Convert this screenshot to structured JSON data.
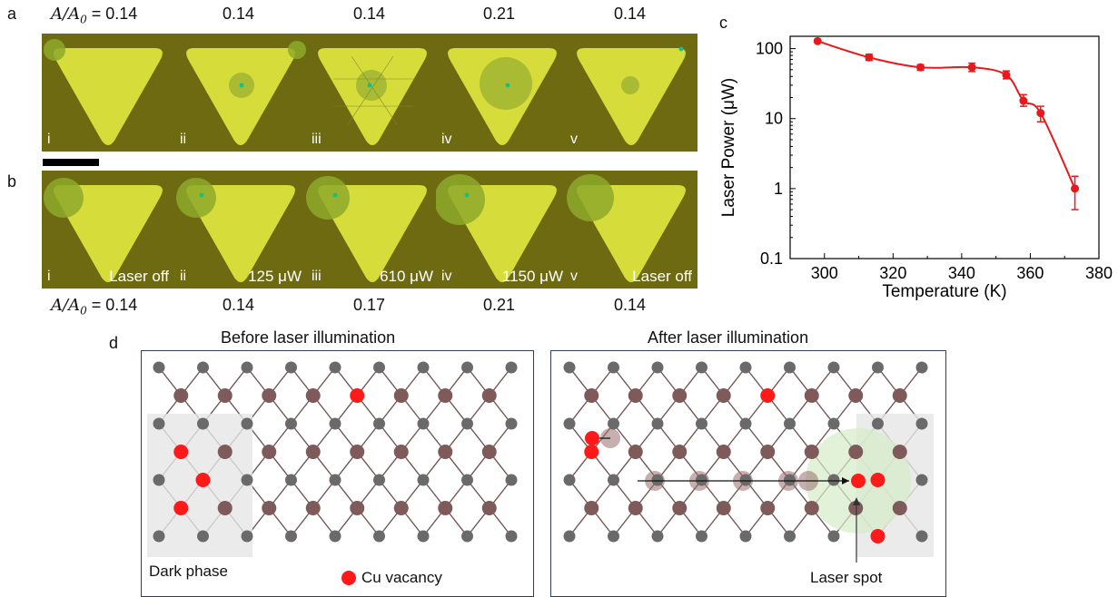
{
  "panel_labels": {
    "a": "a",
    "b": "b",
    "c": "c",
    "d": "d"
  },
  "row_a": {
    "ratios": [
      "0.14",
      "0.14",
      "0.14",
      "0.21",
      "0.14"
    ],
    "ratio_prefix": "A/A",
    "ratio_sub": "0",
    "tiles": [
      "i",
      "ii",
      "iii",
      "iv",
      "v"
    ]
  },
  "row_b": {
    "ratios": [
      "0.14",
      "0.14",
      "0.17",
      "0.21",
      "0.14"
    ],
    "tiles": [
      {
        "num": "i",
        "cond": "Laser off"
      },
      {
        "num": "ii",
        "cond": "125 μW"
      },
      {
        "num": "iii",
        "cond": "610 μW"
      },
      {
        "num": "iv",
        "cond": "1150 μW"
      },
      {
        "num": "v",
        "cond": "Laser off"
      }
    ]
  },
  "chart_data": {
    "type": "scatter",
    "xlabel": "Temperature (K)",
    "ylabel": "Laser Power (μW)",
    "xlim": [
      290,
      380
    ],
    "ylim": [
      0.1,
      150
    ],
    "yscale": "log",
    "xticks": [
      "300",
      "320",
      "340",
      "360",
      "380"
    ],
    "yticks": [
      "0.1",
      "1",
      "10",
      "100"
    ],
    "points": [
      {
        "x": 298,
        "y": 128,
        "err": [
          128,
          128
        ]
      },
      {
        "x": 313,
        "y": 75,
        "err": [
          68,
          83
        ]
      },
      {
        "x": 328,
        "y": 54,
        "err": [
          49,
          59
        ]
      },
      {
        "x": 343,
        "y": 54,
        "err": [
          47,
          62
        ]
      },
      {
        "x": 353,
        "y": 42,
        "err": [
          37,
          48
        ]
      },
      {
        "x": 358,
        "y": 18,
        "err": [
          15,
          22
        ]
      },
      {
        "x": 363,
        "y": 12,
        "err": [
          9,
          15
        ]
      },
      {
        "x": 373,
        "y": 1,
        "err": [
          0.5,
          1.5
        ]
      }
    ],
    "color": "#e8191c"
  },
  "panel_d": {
    "left_title": "Before laser illumination",
    "right_title": "After laser illumination",
    "dark_phase": "Dark phase",
    "cu_vacancy": "Cu vacancy",
    "laser_spot": "Laser spot",
    "vacancy_color": "#ff1a1a",
    "brown_atom": "#7e5a5a",
    "grey_atom": "#6a6a6a"
  }
}
